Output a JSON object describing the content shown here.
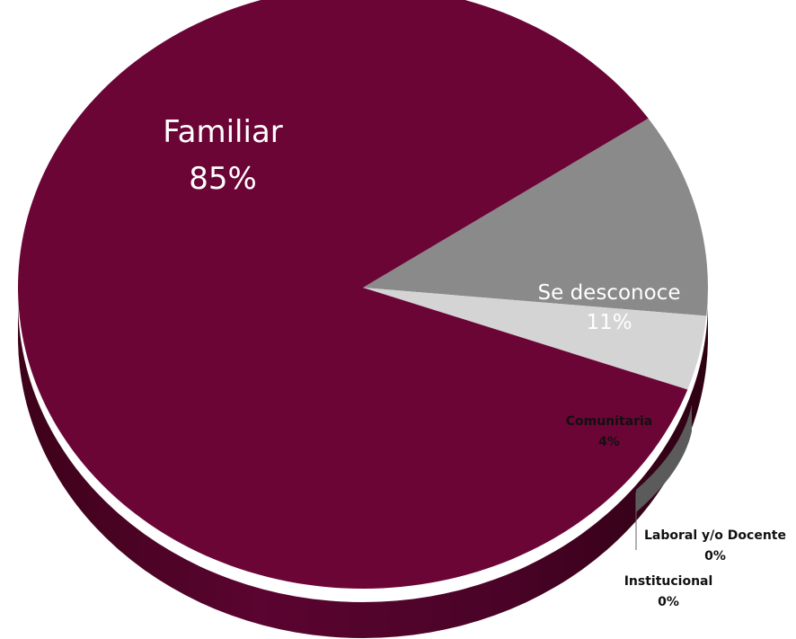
{
  "chart_data": {
    "type": "pie",
    "title": "",
    "slices": [
      {
        "label": "Familiar",
        "value": 85,
        "display": "85%",
        "color": "#6b0536"
      },
      {
        "label": "Se desconoce",
        "value": 11,
        "display": "11%",
        "color": "#8a8a8a"
      },
      {
        "label": "Comunitaria",
        "value": 4,
        "display": "4%",
        "color": "#d4d4d4"
      },
      {
        "label": "Laboral y/o Docente",
        "value": 0,
        "display": "0%",
        "color": "#9e9e9e"
      },
      {
        "label": "Institucional",
        "value": 0,
        "display": "0%",
        "color": "#b8b8b8"
      }
    ],
    "style": "3d-tilted"
  }
}
